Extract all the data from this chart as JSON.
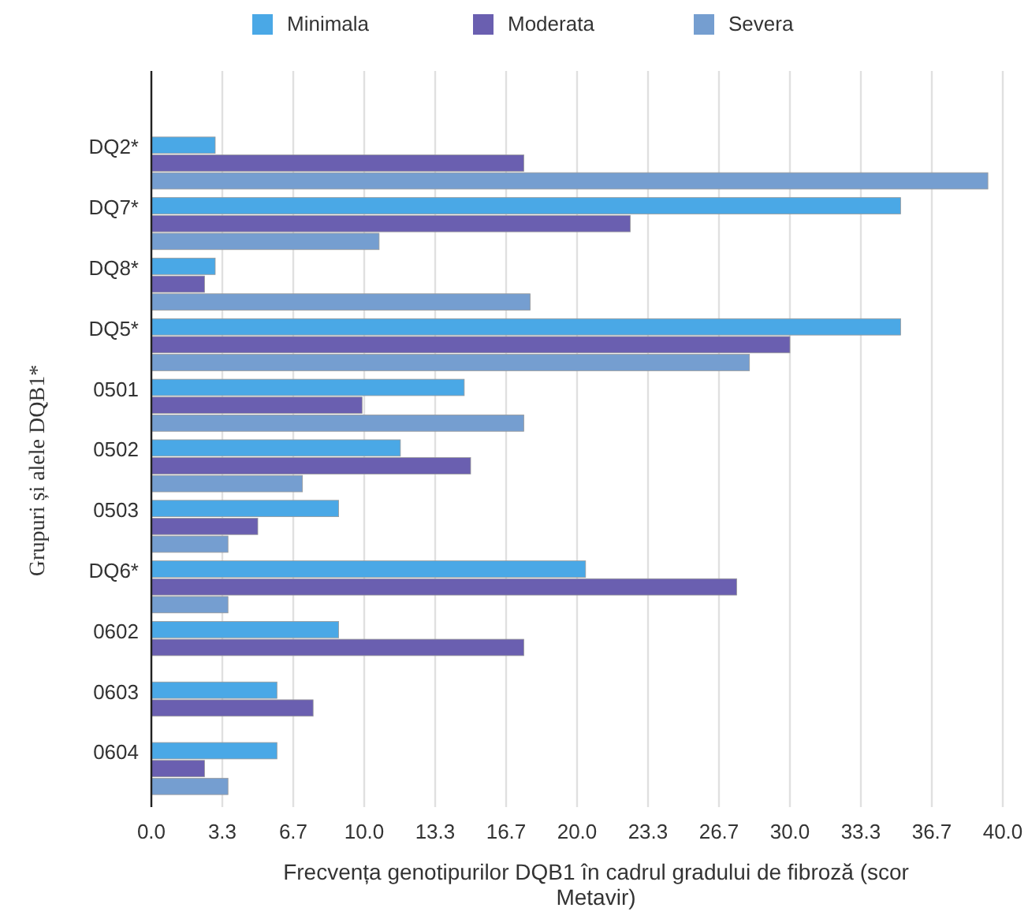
{
  "chart_data": {
    "type": "bar",
    "orientation": "horizontal",
    "xlabel": "Frecvența genotipurilor DQB1 în cadrul gradului de fibroză (scor Metavir)",
    "ylabel": "Grupuri și alele DQB1*",
    "categories": [
      "DQ2*",
      "DQ7*",
      "DQ8*",
      "DQ5*",
      "0501",
      "0502",
      "0503",
      "DQ6*",
      "0602",
      "0603",
      "0604"
    ],
    "series": [
      {
        "name": "Minimala",
        "color": "#4aa8e6",
        "values": [
          3.0,
          35.2,
          3.0,
          35.2,
          14.7,
          11.7,
          8.8,
          20.4,
          8.8,
          5.9,
          5.9
        ]
      },
      {
        "name": "Moderata",
        "color": "#6a5fb0",
        "values": [
          17.5,
          22.5,
          2.5,
          30.0,
          9.9,
          15.0,
          5.0,
          27.5,
          17.5,
          7.6,
          2.5
        ]
      },
      {
        "name": "Severa",
        "color": "#759ed0",
        "values": [
          39.3,
          10.7,
          17.8,
          28.1,
          17.5,
          7.1,
          3.6,
          3.6,
          null,
          null,
          3.6
        ]
      }
    ],
    "xlim": [
      0,
      40
    ],
    "xticks": [
      {
        "value": 0,
        "label": "0.0"
      },
      {
        "value": 3.333,
        "label": "3.3"
      },
      {
        "value": 6.667,
        "label": "6.7"
      },
      {
        "value": 10,
        "label": "10.0"
      },
      {
        "value": 13.333,
        "label": "13.3"
      },
      {
        "value": 16.667,
        "label": "16.7"
      },
      {
        "value": 20,
        "label": "20.0"
      },
      {
        "value": 23.333,
        "label": "23.3"
      },
      {
        "value": 26.667,
        "label": "26.7"
      },
      {
        "value": 30,
        "label": "30.0"
      },
      {
        "value": 33.333,
        "label": "33.3"
      },
      {
        "value": 36.667,
        "label": "36.7"
      },
      {
        "value": 40,
        "label": "40.0"
      }
    ],
    "grid": "x",
    "legend": "top"
  }
}
